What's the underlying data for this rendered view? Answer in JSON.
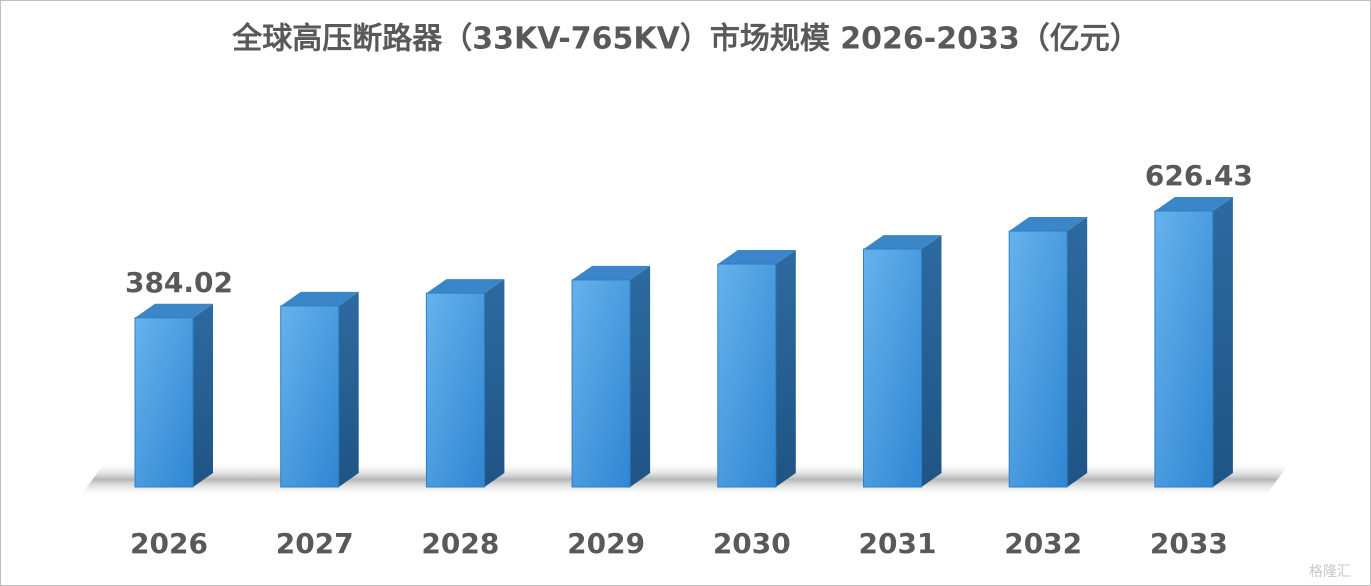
{
  "chart_data": {
    "type": "bar3d",
    "title": "全球高压断路器（33KV-765KV）市场规模 2026-2033（亿元）",
    "categories": [
      "2026",
      "2027",
      "2028",
      "2029",
      "2030",
      "2031",
      "2032",
      "2033"
    ],
    "values": [
      384.02,
      411,
      440,
      470,
      506,
      540,
      581,
      626.43
    ],
    "value_labels": [
      "384.02",
      null,
      null,
      null,
      null,
      null,
      null,
      "626.43"
    ],
    "color": "#4a9de0",
    "ylim": [
      0,
      626.43
    ]
  },
  "watermark": "格隆汇"
}
